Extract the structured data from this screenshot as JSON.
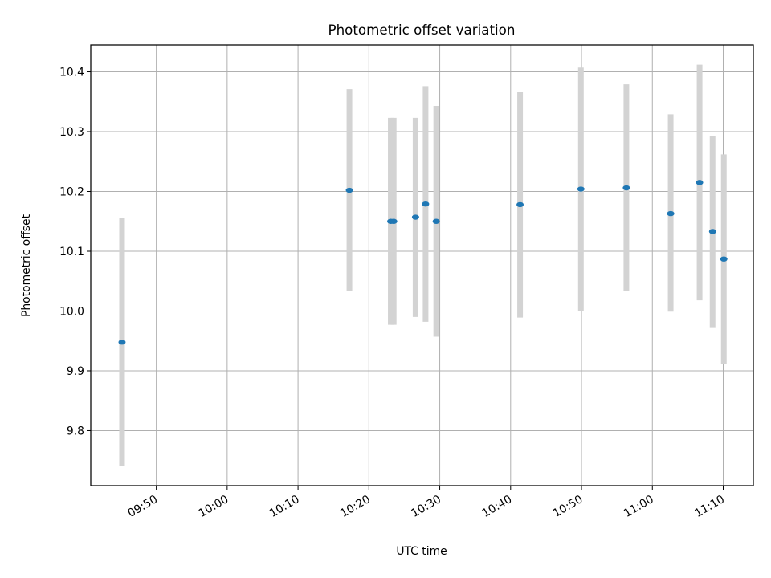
{
  "chart_data": {
    "type": "scatter",
    "title": "Photometric offset variation",
    "xlabel": "UTC time",
    "ylabel": "Photometric offset",
    "x_ticks": [
      "09:50",
      "10:00",
      "10:10",
      "10:20",
      "10:30",
      "10:40",
      "10:50",
      "11:00",
      "11:10"
    ],
    "y_ticks": [
      "9.8",
      "9.9",
      "10.0",
      "10.1",
      "10.2",
      "10.3",
      "10.4"
    ],
    "xlim": [
      "09:40:45",
      "11:14:15"
    ],
    "ylim": [
      9.708,
      10.445
    ],
    "grid": true,
    "colors": {
      "points": "#1f77b4",
      "error_bars": "#d3d3d3",
      "grid": "#b0b0b0"
    },
    "points": [
      {
        "x": "09:45:10",
        "y": 9.948,
        "ylow": 9.741,
        "yhigh": 10.155
      },
      {
        "x": "10:17:15",
        "y": 10.202,
        "ylow": 10.034,
        "yhigh": 10.371
      },
      {
        "x": "10:23:05",
        "y": 10.15,
        "ylow": 9.977,
        "yhigh": 10.323
      },
      {
        "x": "10:23:30",
        "y": 10.15,
        "ylow": 9.977,
        "yhigh": 10.323
      },
      {
        "x": "10:26:35",
        "y": 10.157,
        "ylow": 9.99,
        "yhigh": 10.323
      },
      {
        "x": "10:28:00",
        "y": 10.179,
        "ylow": 9.982,
        "yhigh": 10.376
      },
      {
        "x": "10:29:30",
        "y": 10.15,
        "ylow": 9.957,
        "yhigh": 10.343
      },
      {
        "x": "10:41:20",
        "y": 10.178,
        "ylow": 9.989,
        "yhigh": 10.367
      },
      {
        "x": "10:49:55",
        "y": 10.204,
        "ylow": 10.0,
        "yhigh": 10.407
      },
      {
        "x": "10:56:20",
        "y": 10.206,
        "ylow": 10.034,
        "yhigh": 10.379
      },
      {
        "x": "11:02:35",
        "y": 10.163,
        "ylow": 9.999,
        "yhigh": 10.329
      },
      {
        "x": "11:06:40",
        "y": 10.215,
        "ylow": 10.018,
        "yhigh": 10.412
      },
      {
        "x": "11:08:30",
        "y": 10.133,
        "ylow": 9.973,
        "yhigh": 10.292
      },
      {
        "x": "11:10:05",
        "y": 10.087,
        "ylow": 9.912,
        "yhigh": 10.262
      }
    ]
  }
}
